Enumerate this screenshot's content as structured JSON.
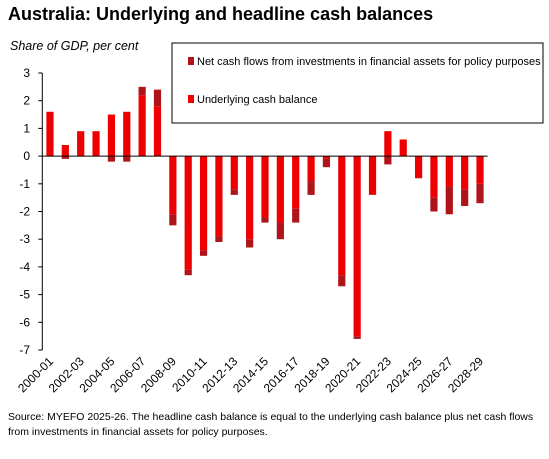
{
  "chart_data": {
    "type": "stacked_bar",
    "title": "Australia:  Underlying and headline cash balances",
    "subtitle": "Share of GDP, per cent",
    "source": "Source: MYEFO 2025-26. The headline cash balance is equal to the underlying cash balance plus net cash flows from investments in financial assets for policy purposes.",
    "categories": [
      "2000-01",
      null,
      "2002-03",
      null,
      "2004-05",
      null,
      "2006-07",
      null,
      "2008-09",
      null,
      "2010-11",
      null,
      "2012-13",
      null,
      "2014-15",
      null,
      "2016-17",
      null,
      "2018-19",
      null,
      "2020-21",
      null,
      "2022-23",
      null,
      "2024-25",
      null,
      "2026-27",
      null,
      "2028-29"
    ],
    "series": [
      {
        "name": "Net cash flows from investments in financial assets for policy purposes",
        "color": "#b0141b",
        "values": [
          0.0,
          -0.1,
          0.0,
          0.0,
          -0.2,
          -0.2,
          0.3,
          0.6,
          -0.4,
          -0.2,
          -0.2,
          -0.2,
          -0.2,
          -0.3,
          -0.2,
          -0.6,
          -0.5,
          -0.5,
          -0.3,
          -0.4,
          -0.1,
          0.0,
          -0.3,
          0.0,
          0.0,
          -0.5,
          -1.0,
          -0.6,
          -0.7
        ]
      },
      {
        "name": "Underlying cash balance",
        "color": "#ee0000",
        "values": [
          1.6,
          0.4,
          0.9,
          0.9,
          1.5,
          1.6,
          2.2,
          1.8,
          -2.1,
          -4.1,
          -3.4,
          -2.9,
          -1.2,
          -3.0,
          -2.2,
          -2.4,
          -1.9,
          -0.9,
          -0.1,
          -4.3,
          -6.5,
          -1.4,
          0.9,
          0.6,
          -0.8,
          -1.5,
          -1.1,
          -1.2,
          -1.0
        ]
      }
    ],
    "ylim": [
      -7,
      3
    ],
    "yticks": [
      -7,
      -6,
      -5,
      -4,
      -3,
      -2,
      -1,
      0,
      1,
      2,
      3
    ]
  }
}
